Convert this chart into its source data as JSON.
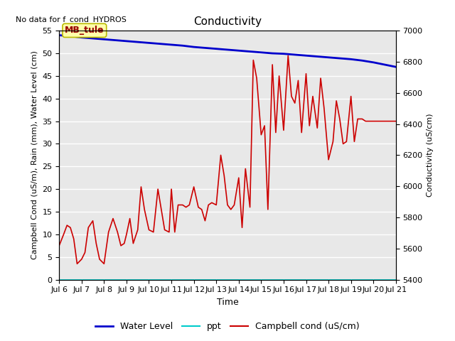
{
  "title": "Conductivity",
  "top_left_text": "No data for f_cond_HYDROS",
  "xlabel": "Time",
  "ylabel_left": "Campbell Cond (uS/m), Rain (mm), Water Level (cm)",
  "ylabel_right": "Conductivity (uS/cm)",
  "xlim": [
    0,
    15
  ],
  "ylim_left": [
    0,
    55
  ],
  "ylim_right": [
    5400,
    7000
  ],
  "xtick_labels": [
    "Jul 6",
    "Jul 7",
    "Jul 8",
    "Jul 9",
    "Jul 10",
    "Jul 11",
    "Jul 12",
    "Jul 13",
    "Jul 14",
    "Jul 15",
    "Jul 16",
    "Jul 17",
    "Jul 18",
    "Jul 19",
    "Jul 20",
    "Jul 21"
  ],
  "yticks_left": [
    0,
    5,
    10,
    15,
    20,
    25,
    30,
    35,
    40,
    45,
    50,
    55
  ],
  "yticks_right": [
    5400,
    5600,
    5800,
    6000,
    6200,
    6400,
    6600,
    6800,
    7000
  ],
  "annotation_label": "MB_tule",
  "bg_color": "#e8e8e8",
  "water_level_x": [
    0,
    0.5,
    1.0,
    1.5,
    2.0,
    2.5,
    3.0,
    3.5,
    4.0,
    4.5,
    5.0,
    5.5,
    6.0,
    6.5,
    7.0,
    7.5,
    8.0,
    8.5,
    9.0,
    9.5,
    10.0,
    10.5,
    11.0,
    11.5,
    12.0,
    12.5,
    13.0,
    13.5,
    14.0,
    14.5,
    15.0
  ],
  "water_level_y": [
    54.0,
    53.8,
    53.5,
    53.3,
    53.1,
    52.9,
    52.7,
    52.5,
    52.3,
    52.1,
    51.9,
    51.7,
    51.4,
    51.2,
    51.0,
    50.8,
    50.6,
    50.4,
    50.2,
    50.0,
    49.9,
    49.7,
    49.5,
    49.3,
    49.1,
    48.9,
    48.7,
    48.4,
    48.0,
    47.5,
    47.0
  ],
  "campbell_x": [
    0.0,
    0.2,
    0.35,
    0.5,
    0.65,
    0.8,
    1.0,
    1.15,
    1.3,
    1.5,
    1.65,
    1.8,
    2.0,
    2.2,
    2.4,
    2.6,
    2.75,
    2.9,
    3.0,
    3.15,
    3.3,
    3.5,
    3.65,
    3.8,
    4.0,
    4.2,
    4.4,
    4.55,
    4.7,
    4.9,
    5.0,
    5.15,
    5.3,
    5.5,
    5.65,
    5.8,
    6.0,
    6.2,
    6.35,
    6.5,
    6.65,
    6.8,
    7.0,
    7.2,
    7.35,
    7.5,
    7.65,
    7.8,
    8.0,
    8.15,
    8.3,
    8.5,
    8.65,
    8.8,
    9.0,
    9.15,
    9.3,
    9.5,
    9.65,
    9.8,
    10.0,
    10.2,
    10.35,
    10.5,
    10.65,
    10.8,
    11.0,
    11.15,
    11.3,
    11.5,
    11.65,
    11.8,
    12.0,
    12.2,
    12.35,
    12.5,
    12.65,
    12.8,
    13.0,
    13.15,
    13.3,
    13.5,
    13.65,
    13.8,
    14.0,
    14.2,
    14.35,
    14.5,
    14.65,
    14.8,
    15.0
  ],
  "campbell_y": [
    7.5,
    10.0,
    12.0,
    11.5,
    9.0,
    3.5,
    4.5,
    6.0,
    11.5,
    13.0,
    8.0,
    4.5,
    3.5,
    10.5,
    13.5,
    10.5,
    7.5,
    8.0,
    10.0,
    13.5,
    8.0,
    11.0,
    20.5,
    15.5,
    11.0,
    10.5,
    20.0,
    15.5,
    11.0,
    10.5,
    20.0,
    10.5,
    16.5,
    16.5,
    16.0,
    16.5,
    20.5,
    16.0,
    15.5,
    13.0,
    16.5,
    17.0,
    16.5,
    27.5,
    23.0,
    16.5,
    15.5,
    16.5,
    22.5,
    11.5,
    24.5,
    16.0,
    48.5,
    44.5,
    32.0,
    34.0,
    15.5,
    47.5,
    32.5,
    45.0,
    33.0,
    49.5,
    40.5,
    39.0,
    44.0,
    32.5,
    45.5,
    34.0,
    40.5,
    33.5,
    44.5,
    38.0,
    26.5,
    30.5,
    39.5,
    35.5,
    30.0,
    30.5,
    40.5,
    30.5,
    35.5,
    35.5,
    35.0,
    35.0,
    35.0,
    35.0,
    35.0,
    35.0,
    35.0,
    35.0,
    35.0
  ],
  "ppt_y": 0.0,
  "water_level_color": "#0000cc",
  "ppt_color": "#00cccc",
  "campbell_color": "#cc0000",
  "title_fontsize": 11,
  "axis_label_fontsize": 8,
  "tick_fontsize": 8,
  "legend_fontsize": 9
}
